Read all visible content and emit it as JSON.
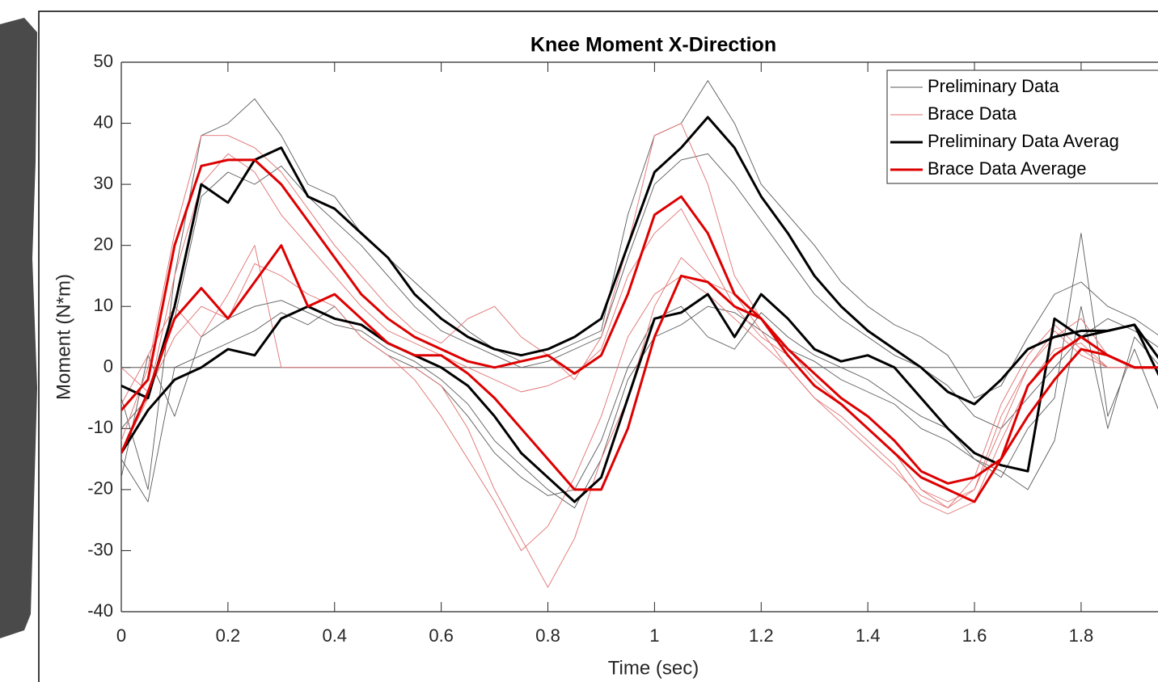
{
  "chart_data": {
    "type": "line",
    "title": "Knee Moment X-Direction",
    "x_label": "Time (sec)",
    "y_label": "Moment (N*m)",
    "x": [
      0,
      0.05,
      0.1,
      0.15,
      0.2,
      0.25,
      0.3,
      0.35,
      0.4,
      0.45,
      0.5,
      0.55,
      0.6,
      0.65,
      0.7,
      0.75,
      0.8,
      0.85,
      0.9,
      0.95,
      1.0,
      1.05,
      1.1,
      1.15,
      1.2,
      1.25,
      1.3,
      1.35,
      1.4,
      1.45,
      1.5,
      1.55,
      1.6,
      1.65,
      1.7,
      1.75,
      1.8,
      1.85,
      1.9,
      1.95
    ],
    "series": [
      {
        "name": "Preliminary Data",
        "color": "#5a5a5a",
        "values": [
          [
            -5,
            -20,
            15,
            38,
            40,
            44,
            38,
            30,
            28,
            22,
            18,
            14,
            10,
            6,
            3,
            1,
            2,
            4,
            6,
            25,
            38,
            40,
            47,
            40,
            30,
            25,
            20,
            14,
            10,
            7,
            5,
            2,
            -5,
            -3,
            5,
            12,
            14,
            10,
            8,
            5
          ],
          [
            -18,
            2,
            -8,
            5,
            8,
            10,
            11,
            9,
            7,
            6,
            3,
            1,
            -2,
            -6,
            -12,
            -16,
            -20,
            -23,
            -15,
            -2,
            5,
            7,
            10,
            9,
            6,
            3,
            1,
            -2,
            -4,
            -6,
            -10,
            -12,
            -15,
            -18,
            -10,
            -5,
            22,
            -8,
            3,
            -8
          ],
          [
            -10,
            -5,
            8,
            28,
            32,
            30,
            33,
            28,
            24,
            20,
            15,
            10,
            6,
            4,
            2,
            0,
            1,
            3,
            5,
            18,
            30,
            34,
            35,
            30,
            24,
            18,
            12,
            8,
            5,
            2,
            0,
            -3,
            -8,
            -10,
            -5,
            0,
            5,
            8,
            6,
            3
          ],
          [
            -15,
            -22,
            0,
            2,
            4,
            6,
            9,
            7,
            10,
            5,
            2,
            0,
            -3,
            -8,
            -14,
            -18,
            -21,
            -20,
            -12,
            0,
            8,
            10,
            5,
            3,
            9,
            5,
            2,
            0,
            -2,
            -5,
            -8,
            -10,
            -15,
            -17,
            -20,
            -12,
            10,
            -10,
            5,
            0
          ]
        ]
      },
      {
        "name": "Brace Data",
        "color": "#e07070",
        "values": [
          [
            -12,
            0,
            22,
            38,
            38,
            36,
            32,
            26,
            20,
            15,
            10,
            6,
            4,
            8,
            10,
            5,
            2,
            -2,
            5,
            20,
            38,
            40,
            30,
            15,
            8,
            3,
            -2,
            -6,
            -10,
            -14,
            -20,
            -22,
            -20,
            -10,
            0,
            5,
            8,
            2,
            0,
            0
          ],
          [
            -6,
            2,
            10,
            5,
            12,
            20,
            0,
            0,
            0,
            0,
            0,
            0,
            -3,
            -10,
            -20,
            -28,
            -36,
            -28,
            -15,
            -5,
            10,
            18,
            14,
            12,
            6,
            0,
            -5,
            -8,
            -12,
            -16,
            -22,
            -24,
            -22,
            -12,
            -3,
            3,
            4,
            0,
            0,
            0
          ],
          [
            -14,
            -5,
            15,
            30,
            35,
            32,
            25,
            20,
            15,
            10,
            6,
            4,
            2,
            0,
            -2,
            -4,
            -3,
            -1,
            3,
            15,
            22,
            26,
            18,
            10,
            5,
            2,
            -3,
            -6,
            -10,
            -14,
            -20,
            -23,
            -20,
            -8,
            0,
            6,
            2,
            0,
            0,
            0
          ],
          [
            0,
            -4,
            5,
            10,
            8,
            17,
            15,
            12,
            10,
            5,
            2,
            -2,
            -8,
            -15,
            -22,
            -30,
            -26,
            -18,
            -8,
            5,
            12,
            15,
            12,
            8,
            4,
            0,
            -5,
            -9,
            -13,
            -17,
            -21,
            -23,
            -18,
            -6,
            2,
            7,
            3,
            0,
            0,
            0
          ]
        ]
      },
      {
        "name": "Preliminary Data Averag",
        "color": "#000000",
        "values": [
          [
            -3,
            -5,
            10,
            30,
            27,
            34,
            36,
            28,
            26,
            22,
            18,
            12,
            8,
            5,
            3,
            2,
            3,
            5,
            8,
            20,
            32,
            36,
            41,
            36,
            28,
            22,
            15,
            10,
            6,
            3,
            0,
            -4,
            -6,
            -2,
            3,
            5,
            6,
            6,
            7,
            1
          ],
          [
            -14,
            -7,
            -2,
            0,
            3,
            2,
            8,
            10,
            8,
            7,
            4,
            2,
            0,
            -3,
            -8,
            -14,
            -18,
            -22,
            -18,
            -5,
            8,
            9,
            12,
            5,
            12,
            8,
            3,
            1,
            2,
            0,
            -5,
            -10,
            -14,
            -16,
            -17,
            8,
            5,
            6,
            7,
            -2
          ]
        ]
      },
      {
        "name": "Brace Data Average",
        "color": "#dd0000",
        "values": [
          [
            -7,
            -2,
            20,
            33,
            34,
            34,
            30,
            24,
            18,
            12,
            8,
            5,
            3,
            1,
            0,
            1,
            2,
            -1,
            2,
            12,
            25,
            28,
            22,
            12,
            8,
            3,
            -1,
            -5,
            -8,
            -12,
            -17,
            -19,
            -18,
            -15,
            -8,
            -2,
            3,
            2,
            0,
            0
          ],
          [
            -14,
            -4,
            8,
            13,
            8,
            14,
            20,
            10,
            12,
            8,
            4,
            2,
            2,
            -1,
            -5,
            -10,
            -15,
            -20,
            -20,
            -10,
            5,
            15,
            14,
            10,
            8,
            2,
            -3,
            -6,
            -10,
            -14,
            -18,
            -20,
            -22,
            -15,
            -3,
            2,
            5,
            2,
            0,
            0
          ]
        ]
      }
    ],
    "xlim": [
      0,
      2
    ],
    "ylim": [
      -40,
      50
    ],
    "xticks": [
      0,
      0.2,
      0.4,
      0.6,
      0.8,
      1,
      1.2,
      1.4,
      1.6,
      1.8
    ],
    "yticks": [
      -40,
      -30,
      -20,
      -10,
      0,
      10,
      20,
      30,
      40,
      50
    ],
    "grid": false,
    "legend": "top-right"
  }
}
